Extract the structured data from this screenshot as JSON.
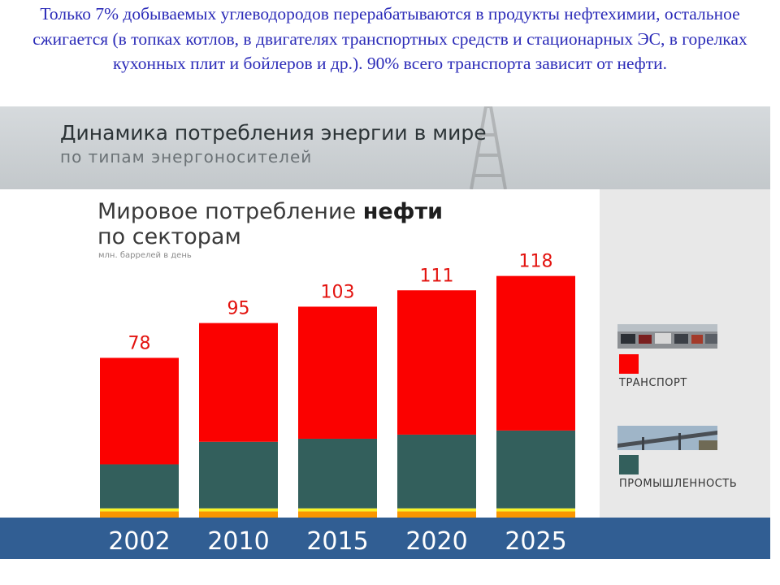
{
  "caption": "Только 7% добываемых углеводородов перерабатываются в продукты нефтехимии, остальное сжигается (в топках котлов, в двигателях транспортных средств и стационарных ЭС, в горелках кухонных плит и бойлеров и др.). 90% всего транспорта зависит от нефти.",
  "banner": {
    "title": "Динамика потребления энергии в мире",
    "subtitle": "по типам энергоносителей"
  },
  "colors": {
    "transport": "#fb0100",
    "industry": "#335f5c",
    "yellow": "#f9f325",
    "orange": "#fa9600",
    "axis_band": "#315e93"
  },
  "chart_data": {
    "type": "bar",
    "stacked": true,
    "title_part1": "Мировое потребление ",
    "title_bold": "нефти",
    "title_line2": "по секторам",
    "unit": "млн. баррелей в день",
    "categories": [
      "2002",
      "2010",
      "2015",
      "2020",
      "2025"
    ],
    "totals": [
      78,
      95,
      103,
      111,
      118
    ],
    "series": [
      {
        "name": "",
        "color": "#fa9600",
        "values": [
          3,
          3,
          3,
          3,
          3
        ]
      },
      {
        "name": "",
        "color": "#f9f325",
        "values": [
          1.5,
          1.5,
          1.5,
          1.5,
          1.5
        ]
      },
      {
        "name": "ПРОМЫШЛЕННОСТЬ",
        "color": "#335f5c",
        "values": [
          21.5,
          32.5,
          34,
          36,
          38
        ]
      },
      {
        "name": "ТРАНСПОРТ",
        "color": "#fb0100",
        "values": [
          52,
          58,
          64.5,
          70.5,
          75.5
        ]
      }
    ],
    "ylim": [
      0,
      120
    ],
    "legend": [
      "ТРАНСПОРТ",
      "ПРОМЫШЛЕННОСТЬ"
    ],
    "legend_position": "right"
  }
}
